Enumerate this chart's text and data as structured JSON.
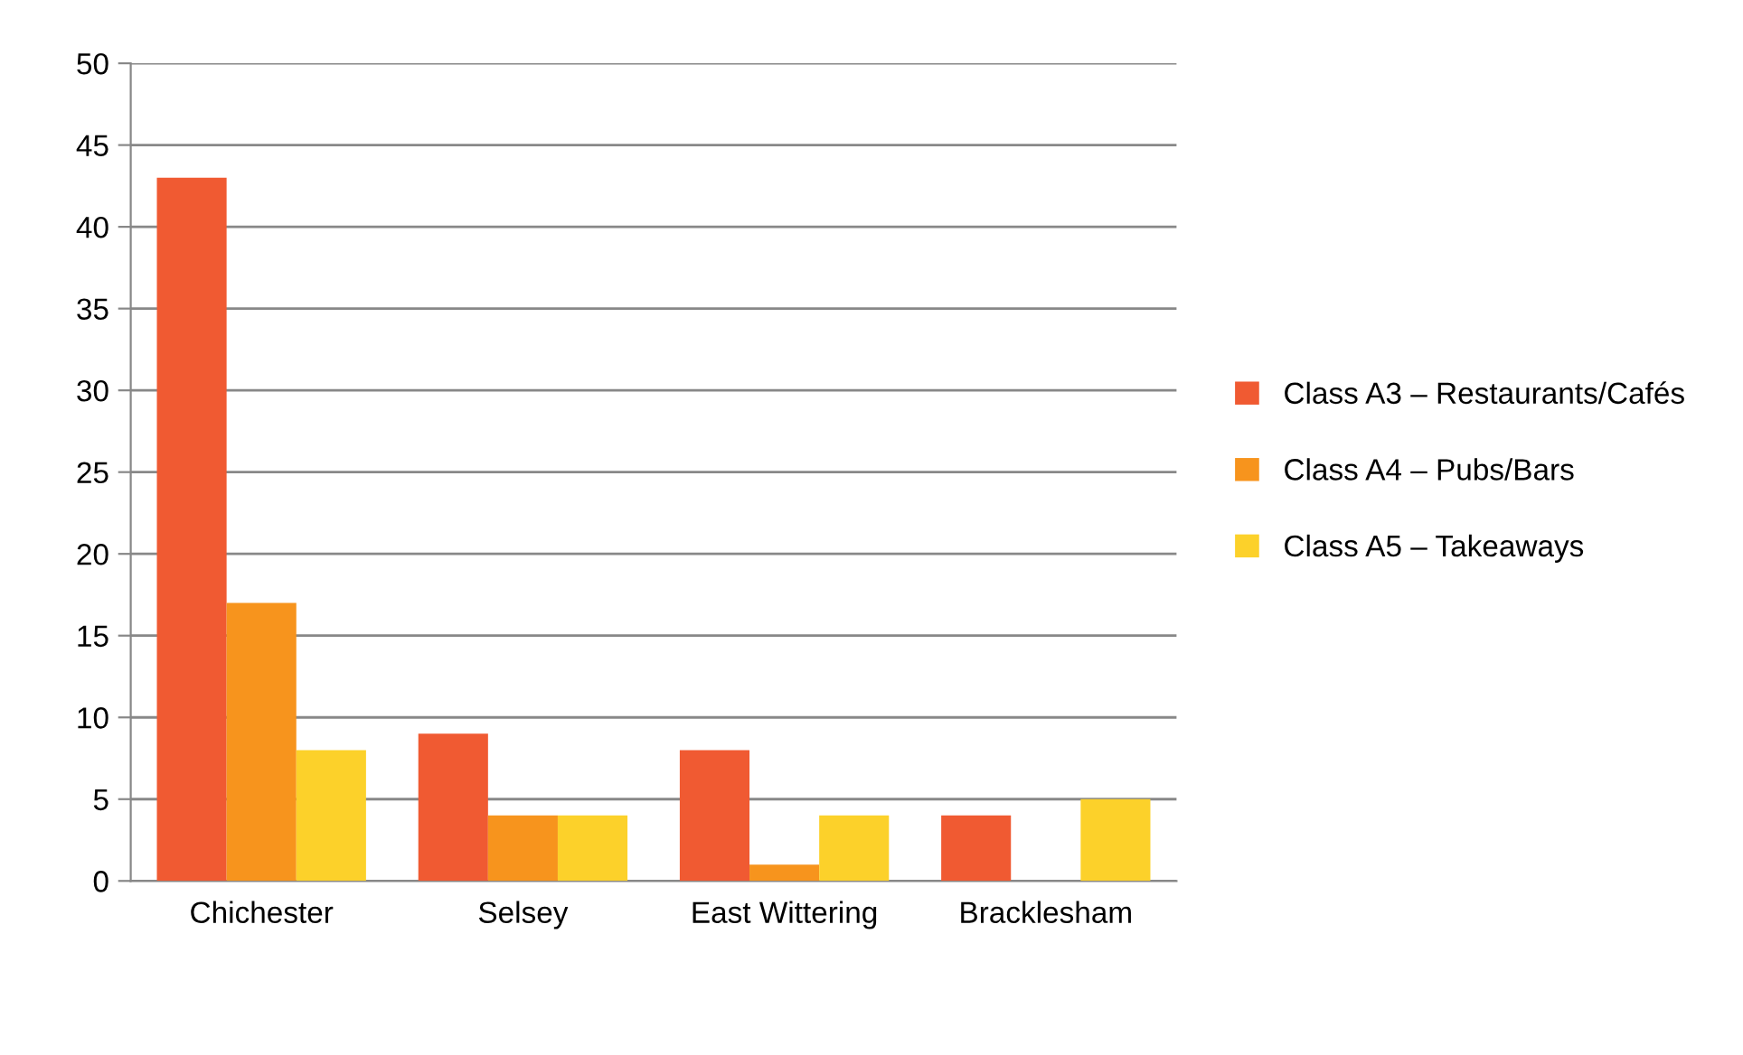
{
  "chart_data": {
    "type": "bar",
    "categories": [
      "Chichester",
      "Selsey",
      "East Wittering",
      "Bracklesham"
    ],
    "series": [
      {
        "name": "Class A3 – Restaurants/Cafés",
        "color": "#f05a32",
        "values": [
          43,
          9,
          8,
          4
        ]
      },
      {
        "name": "Class A4 – Pubs/Bars",
        "color": "#f7941d",
        "values": [
          17,
          4,
          1,
          0
        ]
      },
      {
        "name": "Class A5 – Takeaways",
        "color": "#fcd12a",
        "values": [
          8,
          4,
          4,
          5
        ]
      }
    ],
    "ylim": [
      0,
      50
    ],
    "yticks": [
      0,
      5,
      10,
      15,
      20,
      25,
      30,
      35,
      40,
      45,
      50
    ],
    "grid": "y",
    "legend": "right"
  }
}
